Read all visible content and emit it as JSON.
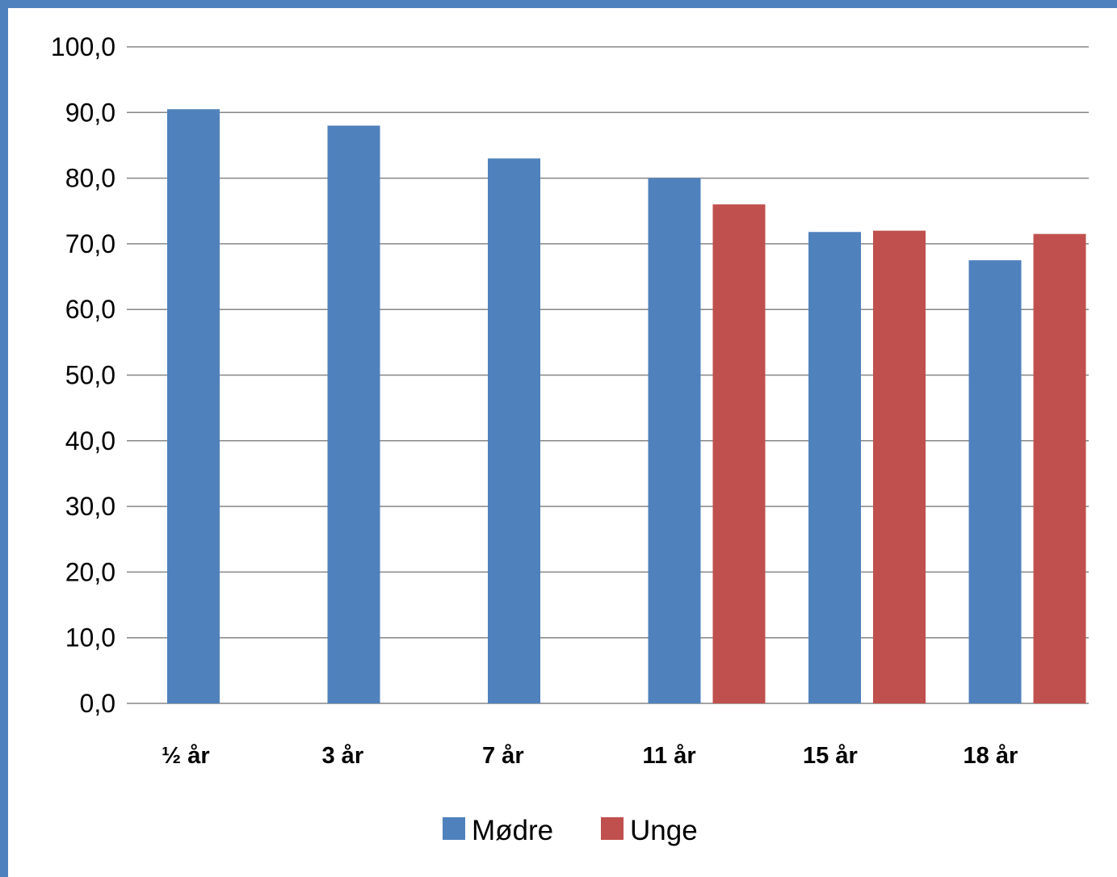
{
  "chart_data": {
    "type": "bar",
    "title": "",
    "xlabel": "",
    "ylabel": "",
    "categories": [
      "½ år",
      "3 år",
      "7 år",
      "11 år",
      "15 år",
      "18 år"
    ],
    "series": [
      {
        "name": "Mødre",
        "color": "#4f81bd",
        "values": [
          90.5,
          88.0,
          83.0,
          80.0,
          71.8,
          67.5
        ]
      },
      {
        "name": "Unge",
        "color": "#c0504d",
        "values": [
          null,
          null,
          null,
          76.0,
          72.0,
          71.5
        ]
      }
    ],
    "ylim": [
      0,
      100
    ],
    "yticks": [
      "0,0",
      "10,0",
      "20,0",
      "30,0",
      "40,0",
      "50,0",
      "60,0",
      "70,0",
      "80,0",
      "90,0",
      "100,0"
    ],
    "grid": true,
    "legend": "bottom-center",
    "gridline_color": "#868686"
  }
}
